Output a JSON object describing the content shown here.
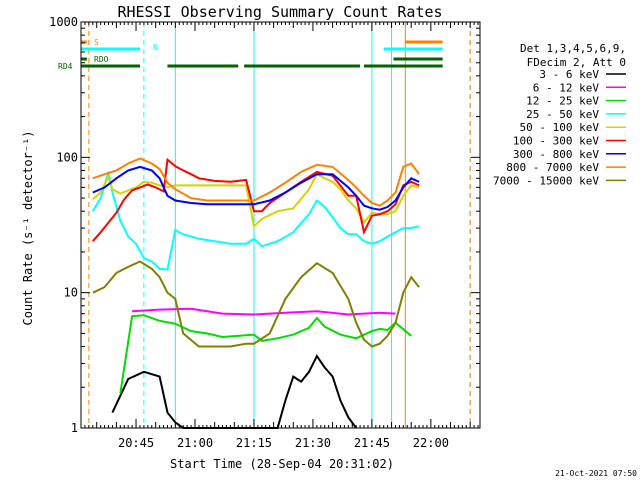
{
  "chart_data": {
    "type": "line",
    "title": "RHESSI Observing Summary Count Rates",
    "xlabel": "Start Time (28-Sep-04 20:31:02)",
    "ylabel": "Count Rate (s⁻¹ detector⁻¹)",
    "yscale": "log",
    "ylim": [
      1,
      1000
    ],
    "xlim_minutes": [
      0,
      101.5
    ],
    "x_ticks": [
      {
        "label": "20:45",
        "minute": 14
      },
      {
        "label": "21:00",
        "minute": 29
      },
      {
        "label": "21:15",
        "minute": 44
      },
      {
        "label": "21:30",
        "minute": 59
      },
      {
        "label": "21:45",
        "minute": 74
      },
      {
        "label": "22:00",
        "minute": 89
      }
    ],
    "y_ticks": [
      {
        "label": "1",
        "value": 1
      },
      {
        "label": "10",
        "value": 10
      },
      {
        "label": "100",
        "value": 100
      },
      {
        "label": "1000",
        "value": 1000
      }
    ],
    "legend_header": [
      "Det 1,3,4,5,6,9,",
      "FDecim 2, Att 0"
    ],
    "legend_position": "right",
    "series": [
      {
        "name": "3 - 6 keV",
        "color": "#000000",
        "x": [
          8,
          12,
          16,
          20,
          22,
          24,
          26,
          28,
          30,
          32,
          50,
          52,
          54,
          56,
          58,
          60,
          62,
          64,
          66,
          68,
          70
        ],
        "y": [
          1.3,
          2.3,
          2.6,
          2.4,
          1.3,
          1.1,
          1.0,
          1.0,
          1.0,
          1.0,
          1.0,
          1.6,
          2.4,
          2.2,
          2.6,
          3.4,
          2.8,
          2.4,
          1.6,
          1.2,
          1.0
        ]
      },
      {
        "name": "6 - 12 keV",
        "color": "#ff00ff",
        "x": [
          13,
          20,
          28,
          36,
          44,
          52,
          60,
          68,
          76,
          80
        ],
        "y": [
          7.3,
          7.5,
          7.6,
          7.0,
          6.9,
          7.1,
          7.3,
          6.9,
          7.1,
          7.0
        ]
      },
      {
        "name": "12 - 25 keV",
        "color": "#00dd00",
        "x": [
          10,
          13,
          16,
          20,
          24,
          28,
          32,
          36,
          44,
          46,
          50,
          54,
          58,
          60,
          62,
          66,
          70,
          74,
          76,
          78,
          80,
          84
        ],
        "y": [
          1.8,
          6.7,
          6.8,
          6.2,
          5.9,
          5.2,
          5.0,
          4.7,
          4.9,
          4.4,
          4.6,
          4.9,
          5.5,
          6.5,
          5.6,
          4.9,
          4.6,
          5.2,
          5.4,
          5.3,
          6.0,
          4.8
        ]
      },
      {
        "name": "25 - 50 keV",
        "color": "#00ffff",
        "x": [
          3,
          5,
          7,
          8,
          10,
          12,
          14,
          16,
          18,
          20,
          22,
          24,
          26,
          28,
          30,
          34,
          38,
          42,
          44,
          46,
          50,
          54,
          58,
          60,
          62,
          64,
          66,
          68,
          70,
          72,
          74,
          76,
          78,
          80,
          82,
          84,
          86
        ],
        "y": [
          40,
          50,
          78,
          55,
          34,
          26,
          23,
          18,
          17,
          15,
          14.8,
          29,
          27,
          26,
          25,
          24,
          23,
          23,
          25,
          22,
          24,
          28,
          38,
          48,
          43,
          36,
          30,
          27,
          27,
          24,
          23,
          24,
          26,
          28,
          30,
          30,
          31
        ]
      },
      {
        "name": "50 - 100 keV",
        "color": "#d4d400",
        "x": [
          3,
          5,
          7,
          8,
          10,
          12,
          14,
          16,
          18,
          20,
          22,
          24,
          26,
          28,
          30,
          34,
          38,
          42,
          44,
          46,
          50,
          54,
          58,
          60,
          62,
          64,
          66,
          68,
          70,
          72,
          74,
          76,
          78,
          80,
          82,
          84,
          86
        ],
        "y": [
          49,
          55,
          72,
          58,
          54,
          57,
          60,
          66,
          65,
          62,
          60,
          62,
          62,
          62,
          62,
          62,
          62,
          62,
          31,
          35,
          40,
          42,
          58,
          75,
          70,
          66,
          58,
          48,
          42,
          33,
          39,
          38,
          38,
          40,
          52,
          62,
          60
        ]
      },
      {
        "name": "100 - 300 keV",
        "color": "#ff0000",
        "x": [
          3,
          5,
          7,
          9,
          11,
          13,
          15,
          17,
          19,
          21,
          22,
          24,
          26,
          28,
          30,
          34,
          38,
          42,
          44,
          46,
          48,
          52,
          56,
          60,
          64,
          68,
          70,
          72,
          74,
          76,
          78,
          80,
          82,
          84,
          86
        ],
        "y": [
          24,
          28,
          33,
          39,
          49,
          57,
          60,
          63,
          60,
          56,
          96,
          86,
          80,
          75,
          70,
          67,
          66,
          68,
          40,
          40,
          46,
          55,
          66,
          78,
          73,
          52,
          52,
          28,
          37,
          38,
          40,
          45,
          62,
          66,
          62
        ]
      },
      {
        "name": "300 - 800 keV",
        "color": "#0000ff",
        "x": [
          3,
          6,
          9,
          12,
          15,
          18,
          20,
          22,
          24,
          28,
          32,
          36,
          40,
          42,
          44,
          48,
          52,
          56,
          60,
          64,
          68,
          70,
          72,
          74,
          76,
          78,
          80,
          82,
          84,
          86
        ],
        "y": [
          55,
          60,
          70,
          80,
          85,
          80,
          70,
          52,
          48,
          46,
          45,
          45,
          45,
          45,
          45,
          48,
          55,
          65,
          75,
          75,
          60,
          52,
          44,
          42,
          41,
          43,
          48,
          60,
          70,
          66
        ]
      },
      {
        "name": "800 - 7000 keV",
        "color": "#ff8000",
        "x": [
          3,
          6,
          9,
          12,
          15,
          18,
          20,
          22,
          24,
          28,
          32,
          36,
          40,
          42,
          44,
          48,
          52,
          56,
          60,
          64,
          68,
          70,
          72,
          74,
          76,
          78,
          80,
          82,
          84,
          86
        ],
        "y": [
          70,
          75,
          80,
          90,
          98,
          90,
          82,
          65,
          58,
          50,
          48,
          48,
          48,
          48,
          48,
          55,
          65,
          78,
          88,
          85,
          68,
          60,
          52,
          46,
          44,
          48,
          55,
          85,
          90,
          75
        ]
      },
      {
        "name": "7000 - 15000 keV",
        "color": "#808000",
        "x": [
          3,
          6,
          9,
          12,
          15,
          18,
          20,
          22,
          24,
          26,
          30,
          34,
          38,
          42,
          44,
          48,
          52,
          56,
          60,
          64,
          68,
          70,
          72,
          74,
          76,
          78,
          80,
          82,
          84,
          86
        ],
        "y": [
          10,
          11,
          14,
          15.5,
          17,
          15,
          13,
          10,
          9,
          5,
          4,
          4,
          4,
          4.2,
          4.2,
          5,
          9,
          13,
          16.5,
          14,
          9,
          6,
          4.5,
          4,
          4.2,
          4.8,
          6,
          10,
          13,
          11
        ]
      }
    ],
    "state_bars": [
      {
        "name": "S",
        "color": "#ff8000",
        "segments": [
          [
            0,
            1.5
          ],
          [
            82.5,
            92
          ]
        ]
      },
      {
        "name": "N",
        "color": "#00ffff",
        "segments": [
          [
            0,
            15
          ],
          [
            77,
            92
          ]
        ]
      },
      {
        "name": "RDO",
        "color": "#006400",
        "segments": [
          [
            0,
            1.5
          ],
          [
            79.5,
            92
          ]
        ]
      },
      {
        "name": "RD4",
        "color": "#006400",
        "segments": [
          [
            0,
            15
          ],
          [
            22,
            40
          ],
          [
            41.5,
            71
          ],
          [
            72,
            92
          ]
        ]
      }
    ],
    "vertical_markers": [
      {
        "color": "#00ffff",
        "style": "solid",
        "minutes": [
          0,
          24,
          44,
          74,
          79
        ]
      },
      {
        "color": "#00ffff",
        "style": "dashed",
        "minutes": [
          16,
          99
        ]
      },
      {
        "color": "#ff8000",
        "style": "solid",
        "minutes": [
          82.5
        ]
      },
      {
        "color": "#ff8000",
        "style": "dashed",
        "minutes": [
          2,
          99
        ]
      }
    ],
    "footer_date": "21-Oct-2021 07:50"
  }
}
